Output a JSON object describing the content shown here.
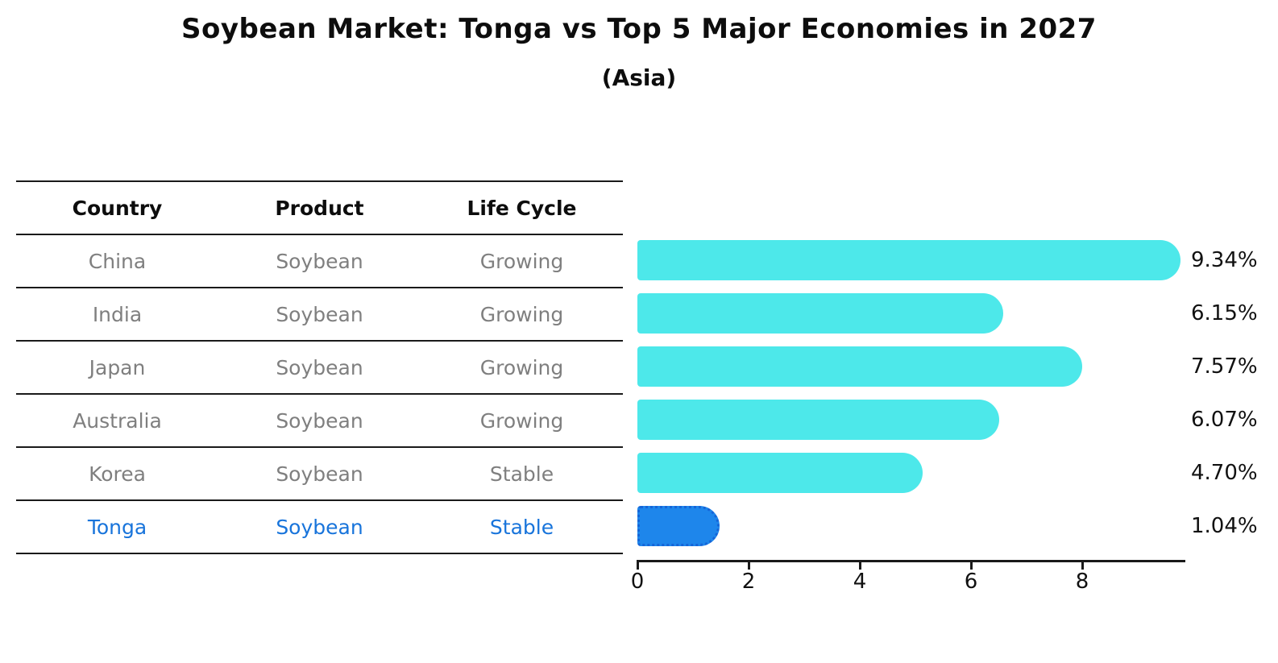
{
  "header": {
    "title": "Soybean Market: Tonga vs Top 5 Major Economies in 2027",
    "subtitle": "(Asia)"
  },
  "table": {
    "columns": [
      "Country",
      "Product",
      "Life Cycle"
    ],
    "rows": [
      {
        "country": "China",
        "product": "Soybean",
        "life_cycle": "Growing",
        "highlighted": false
      },
      {
        "country": "India",
        "product": "Soybean",
        "life_cycle": "Growing",
        "highlighted": false
      },
      {
        "country": "Japan",
        "product": "Soybean",
        "life_cycle": "Growing",
        "highlighted": false
      },
      {
        "country": "Australia",
        "product": "Soybean",
        "life_cycle": "Growing",
        "highlighted": false
      },
      {
        "country": "Korea",
        "product": "Soybean",
        "life_cycle": "Stable",
        "highlighted": false
      },
      {
        "country": "Tonga",
        "product": "Soybean",
        "life_cycle": "Stable",
        "highlighted": true
      }
    ]
  },
  "chart_data": {
    "type": "bar",
    "orientation": "horizontal",
    "title": "Soybean Market: Tonga vs Top 5 Major Economies in 2027",
    "subtitle": "(Asia)",
    "categories": [
      "China",
      "India",
      "Japan",
      "Australia",
      "Korea",
      "Tonga"
    ],
    "values": [
      9.34,
      6.15,
      7.57,
      6.07,
      4.7,
      1.04
    ],
    "value_labels": [
      "9.34%",
      "6.15%",
      "7.57%",
      "6.07%",
      "4.70%",
      "1.04%"
    ],
    "xlabel": "",
    "ylabel": "",
    "xlim": [
      0,
      9.83
    ],
    "x_ticks": [
      0,
      2,
      4,
      6,
      8
    ],
    "grid": false,
    "legend": false,
    "highlight_category": "Tonga"
  },
  "colors": {
    "bar_default": "#4de8ea",
    "bar_highlight_fill": "#1e86eb",
    "bar_highlight_border": "#1565d8",
    "highlight_text": "#1874db",
    "table_text": "#7f7f7f",
    "heading_text": "#0d0d0d",
    "axis": "#1a1a1a"
  }
}
